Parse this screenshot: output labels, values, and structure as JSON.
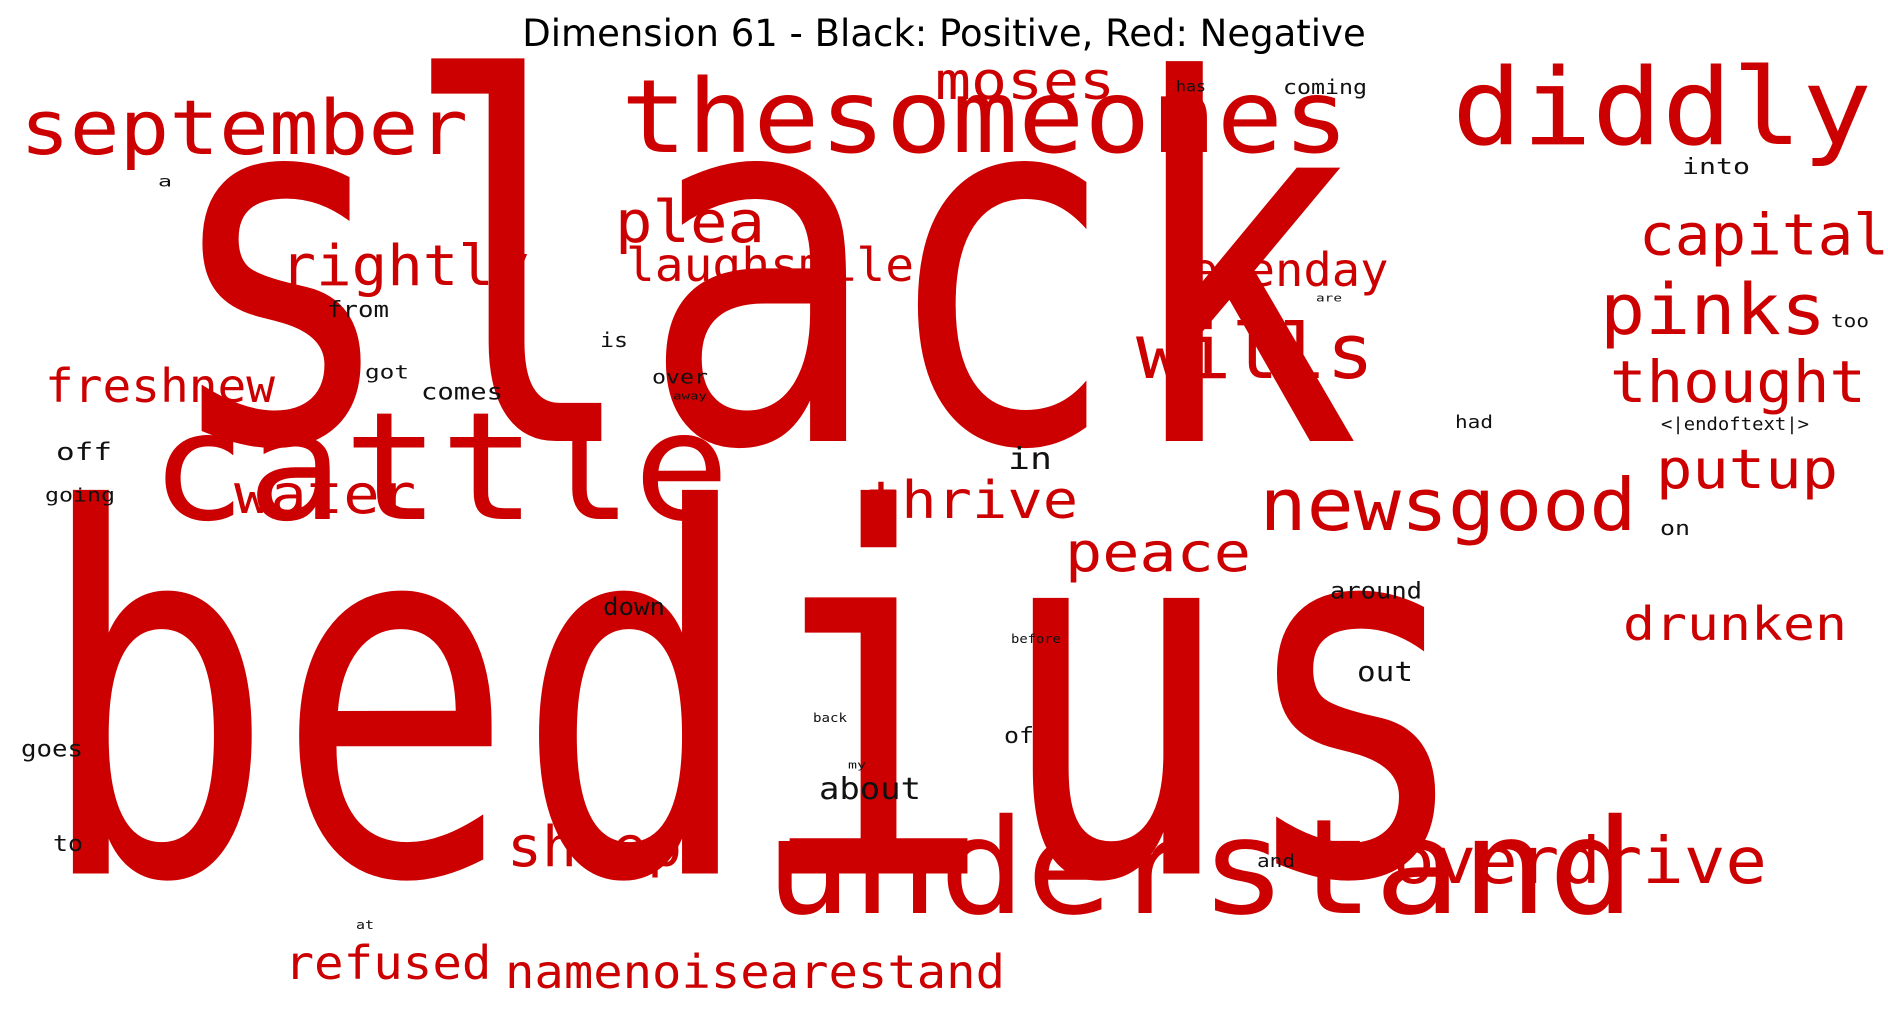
{
  "title": "Dimension 61 - Black: Positive, Red: Negative",
  "colors": {
    "positive": "#111111",
    "negative": "#cc0000"
  },
  "words": [
    {
      "text": "slack",
      "sign": "negative"
    },
    {
      "text": "bedius",
      "sign": "negative"
    },
    {
      "text": "cattle",
      "sign": "negative"
    },
    {
      "text": "understand",
      "sign": "negative"
    },
    {
      "text": "thesomeones",
      "sign": "negative"
    },
    {
      "text": "diddly",
      "sign": "negative"
    },
    {
      "text": "september",
      "sign": "negative"
    },
    {
      "text": "newsgood",
      "sign": "negative"
    },
    {
      "text": "wills",
      "sign": "negative"
    },
    {
      "text": "overdrive",
      "sign": "negative"
    },
    {
      "text": "pinks",
      "sign": "negative"
    },
    {
      "text": "thought",
      "sign": "negative"
    },
    {
      "text": "capital",
      "sign": "negative"
    },
    {
      "text": "putup",
      "sign": "negative"
    },
    {
      "text": "rightly",
      "sign": "negative"
    },
    {
      "text": "plea",
      "sign": "negative"
    },
    {
      "text": "laughsmile",
      "sign": "negative"
    },
    {
      "text": "moses",
      "sign": "negative"
    },
    {
      "text": "sevenday",
      "sign": "negative"
    },
    {
      "text": "peace",
      "sign": "negative"
    },
    {
      "text": "thrive",
      "sign": "negative"
    },
    {
      "text": "water",
      "sign": "negative"
    },
    {
      "text": "freshnew",
      "sign": "negative"
    },
    {
      "text": "sheeps",
      "sign": "negative"
    },
    {
      "text": "drunken",
      "sign": "negative"
    },
    {
      "text": "refused",
      "sign": "negative"
    },
    {
      "text": "namenoisearestand",
      "sign": "negative"
    },
    {
      "text": "about",
      "sign": "positive"
    },
    {
      "text": "in",
      "sign": "positive"
    },
    {
      "text": "out",
      "sign": "positive"
    },
    {
      "text": "comes",
      "sign": "positive"
    },
    {
      "text": "off",
      "sign": "positive"
    },
    {
      "text": "around",
      "sign": "positive"
    },
    {
      "text": "down",
      "sign": "positive"
    },
    {
      "text": "goes",
      "sign": "positive"
    },
    {
      "text": "into",
      "sign": "positive"
    },
    {
      "text": "from",
      "sign": "positive"
    },
    {
      "text": "coming",
      "sign": "positive"
    },
    {
      "text": "over",
      "sign": "positive"
    },
    {
      "text": "is",
      "sign": "positive"
    },
    {
      "text": "got",
      "sign": "positive"
    },
    {
      "text": "<|endoftext|>",
      "sign": "positive"
    },
    {
      "text": "had",
      "sign": "positive"
    },
    {
      "text": "too",
      "sign": "positive"
    },
    {
      "text": "on",
      "sign": "positive"
    },
    {
      "text": "of",
      "sign": "positive"
    },
    {
      "text": "to",
      "sign": "positive"
    },
    {
      "text": "going",
      "sign": "positive"
    },
    {
      "text": "and",
      "sign": "positive"
    },
    {
      "text": "has",
      "sign": "positive"
    },
    {
      "text": "a",
      "sign": "positive"
    },
    {
      "text": "are",
      "sign": "positive"
    },
    {
      "text": "away",
      "sign": "positive"
    },
    {
      "text": "before",
      "sign": "positive"
    },
    {
      "text": "back",
      "sign": "positive"
    },
    {
      "text": "my",
      "sign": "positive"
    },
    {
      "text": "at",
      "sign": "positive"
    }
  ]
}
